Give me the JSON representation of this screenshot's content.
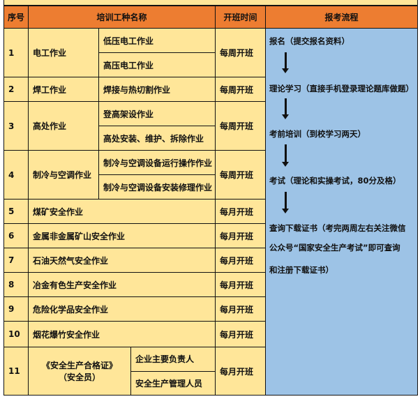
{
  "header": {
    "no": "序号",
    "name": "培训工种名称",
    "time": "开班时间",
    "flow": "报考流程"
  },
  "rows": [
    {
      "no": "1",
      "name": "电工作业",
      "subs": [
        "低压电工作业",
        "高压电工作业"
      ],
      "time": "每周开班"
    },
    {
      "no": "2",
      "name": "焊工作业",
      "subs": [
        "焊接与热切割作业"
      ],
      "time": "每周开班"
    },
    {
      "no": "3",
      "name": "高处作业",
      "subs": [
        "登高架设作业",
        "高处安装、维护、拆除作业"
      ],
      "time": "每周开班"
    },
    {
      "no": "4",
      "name": "制冷与空调作业",
      "subs": [
        "制冷与空调设备运行操作作业",
        "制冷与空调设备安装修理作业"
      ],
      "time": "每周开班"
    },
    {
      "no": "5",
      "name": "煤矿安全作业",
      "subs": [],
      "time": "每月开班"
    },
    {
      "no": "6",
      "name": "金属非金属矿山安全作业",
      "subs": [],
      "time": "每月开班"
    },
    {
      "no": "7",
      "name": "石油天然气安全作业",
      "subs": [],
      "time": "每月开班"
    },
    {
      "no": "8",
      "name": "冶金有色生产安全作业",
      "subs": [],
      "time": "每月开班"
    },
    {
      "no": "9",
      "name": "危险化学品安全作业",
      "subs": [],
      "time": "每月开班"
    },
    {
      "no": "10",
      "name": "烟花爆竹安全作业",
      "subs": [],
      "time": "每月开班"
    },
    {
      "no": "11",
      "name": "《安全生产合格证》\n（安全员）",
      "subs": [
        "企业主要负责人",
        "安全生产管理人员"
      ],
      "time": "每月开班"
    }
  ],
  "flow": {
    "steps": [
      "报名（提交报名资料）",
      "理论学习（直接手机登录理论题库做题）",
      "考前培训（到校学习两天）",
      "考试（理论和实操考试，80分及格）",
      "查询下载证书（考完两周左右关注微信",
      "公众号“国家安全生产考试”即可查询",
      "和注册下载证书）"
    ],
    "arrow_icon": "down-arrow-icon"
  },
  "colors": {
    "header": "#ed7d31",
    "cell": "#ffe699",
    "flow": "#9dc3e6"
  }
}
